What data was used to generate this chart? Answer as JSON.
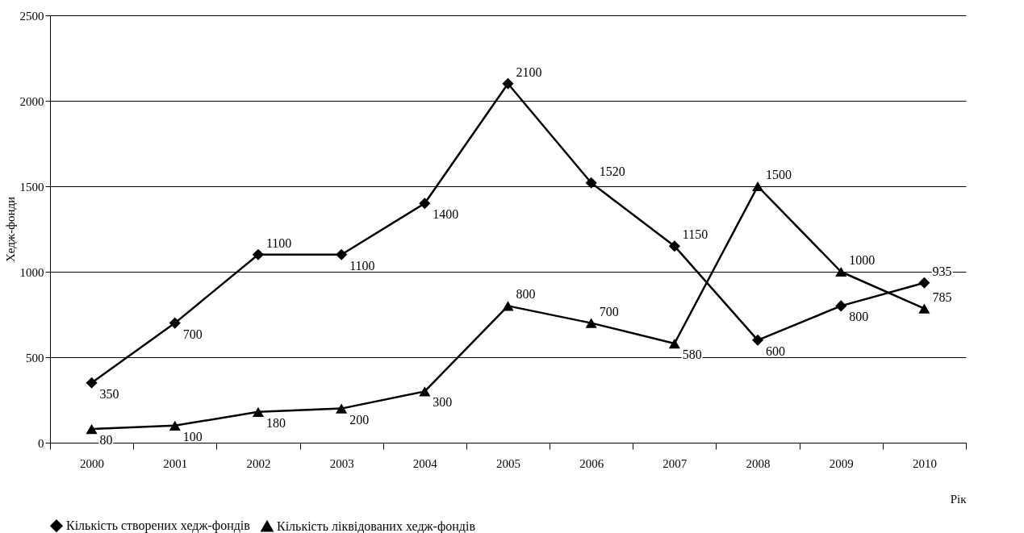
{
  "chart_data": {
    "type": "line",
    "xlabel": "Рік",
    "ylabel": "Хедж-фонди",
    "categories": [
      "2000",
      "2001",
      "2002",
      "2003",
      "2004",
      "2005",
      "2006",
      "2007",
      "2008",
      "2009",
      "2010"
    ],
    "series": [
      {
        "name": "Кількість створених хедж-фондів",
        "color": "#000000",
        "marker": "diamond",
        "values": [
          350,
          700,
          1100,
          1100,
          1400,
          2100,
          1520,
          1150,
          600,
          800,
          935
        ]
      },
      {
        "name": "Кількість ліквідованих хедж-фондів",
        "color": "#000000",
        "marker": "triangle",
        "values": [
          80,
          100,
          180,
          200,
          300,
          800,
          700,
          580,
          1500,
          1000,
          785
        ]
      }
    ],
    "ylim": [
      0,
      2500
    ],
    "yticks": [
      0,
      500,
      1000,
      1500,
      2000,
      2500
    ],
    "grid": "y",
    "legend": "bottom",
    "data_labels": true,
    "line_style": "solid"
  }
}
